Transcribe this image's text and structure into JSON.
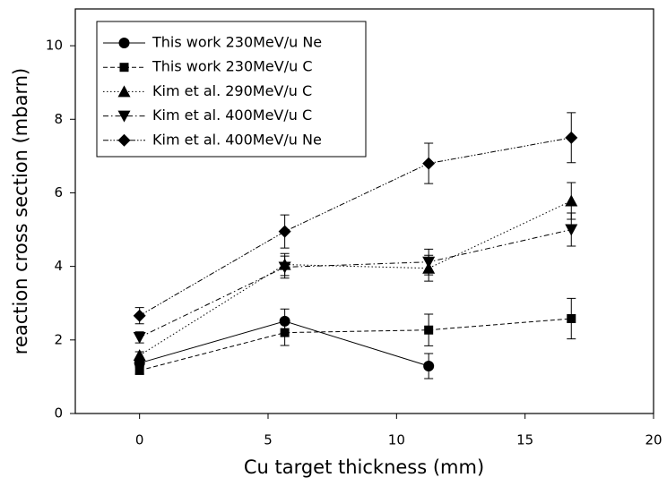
{
  "chart_data": {
    "type": "line",
    "xlabel": "Cu target thickness (mm)",
    "ylabel": "reaction cross section (mbarn)",
    "x": [
      0,
      5.65,
      11.25,
      16.8
    ],
    "xlim": [
      -2.5,
      20
    ],
    "xticks": [
      0,
      5,
      10,
      15,
      20
    ],
    "ylim": [
      0,
      11
    ],
    "yticks": [
      0,
      2,
      4,
      6,
      8,
      10
    ],
    "legend": "upper left",
    "series": [
      {
        "name": "This work 230MeV/u Ne",
        "color": "#000000",
        "marker": "circle",
        "dash": "solid",
        "values": [
          1.37,
          2.51,
          1.29,
          null
        ],
        "errors": [
          0.1,
          0.33,
          0.34,
          null
        ]
      },
      {
        "name": "This work 230MeV/u C",
        "color": "#000000",
        "marker": "square",
        "dash": "dashed",
        "values": [
          1.17,
          2.2,
          2.27,
          2.58
        ],
        "errors": [
          0.1,
          0.35,
          0.43,
          0.55
        ]
      },
      {
        "name": "Kim et al. 290MeV/u C",
        "color": "#000000",
        "marker": "triangle-up",
        "dash": "dotted",
        "values": [
          1.58,
          4.05,
          3.95,
          5.78
        ],
        "errors": [
          0.1,
          0.3,
          0.35,
          0.5
        ]
      },
      {
        "name": "Kim et al. 400MeV/u C",
        "color": "#000000",
        "marker": "triangle-down",
        "dash": "dashdot",
        "values": [
          2.07,
          3.98,
          4.12,
          5.0
        ],
        "errors": [
          0.15,
          0.3,
          0.35,
          0.45
        ]
      },
      {
        "name": "Kim et al. 400MeV/u Ne",
        "color": "#000000",
        "marker": "diamond",
        "dash": "dashdotdot",
        "values": [
          2.66,
          4.95,
          6.8,
          7.5
        ],
        "errors": [
          0.22,
          0.45,
          0.55,
          0.68
        ]
      }
    ]
  }
}
